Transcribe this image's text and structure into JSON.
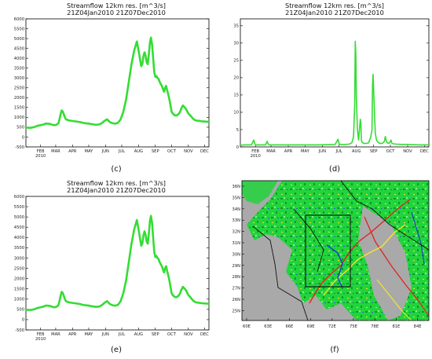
{
  "chart_data": [
    {
      "type": "line",
      "panel": "c",
      "title": "Streamflow 12km res. [m^3/s]",
      "subtitle": "21Z04Jan2010 21Z07Dec2010",
      "caption": "(c)",
      "ylim": [
        -500,
        6000
      ],
      "yticks": [
        "6000",
        "5500",
        "5000",
        "4500",
        "4000",
        "3500",
        "3000",
        "2500",
        "2000",
        "1500",
        "1000",
        "500",
        "0",
        "-500"
      ],
      "xticks": [
        "FEB\n2010",
        "MAR",
        "APR",
        "MAY",
        "JUN",
        "JUL",
        "AUG",
        "SEP",
        "OCT",
        "NOV",
        "DEC"
      ],
      "color": "#33dd33",
      "series": [
        {
          "x": [
            0,
            8,
            15,
            20,
            25,
            30,
            33,
            36,
            40,
            44,
            48,
            52,
            56,
            60,
            62,
            64,
            66,
            68,
            70,
            72,
            74,
            80,
            85,
            90,
            95,
            100,
            105,
            110,
            115,
            120,
            125,
            130,
            135,
            140,
            145,
            150,
            155,
            160,
            165,
            170,
            175,
            180,
            185,
            190,
            195,
            200,
            205,
            208,
            211,
            213,
            215,
            217,
            219,
            221,
            223,
            225,
            227,
            229,
            231,
            233,
            235,
            237,
            239,
            241,
            243,
            245,
            247,
            249,
            251,
            253,
            255,
            257,
            259,
            261,
            263,
            265,
            267,
            269,
            271,
            273,
            275,
            277,
            279,
            281,
            283,
            285,
            287,
            290,
            295,
            300,
            305,
            308,
            311,
            314,
            317,
            320,
            325,
            330,
            335,
            338
          ],
          "y": [
            480,
            470,
            500,
            560,
            590,
            620,
            640,
            680,
            680,
            670,
            630,
            600,
            620,
            700,
            900,
            1150,
            1350,
            1300,
            1150,
            1000,
            900,
            840,
            820,
            800,
            780,
            760,
            720,
            700,
            690,
            660,
            640,
            620,
            640,
            700,
            820,
            900,
            760,
            700,
            680,
            720,
            900,
            1300,
            1900,
            2800,
            3700,
            4400,
            4850,
            4400,
            3900,
            3600,
            3700,
            4100,
            4300,
            4150,
            3800,
            3700,
            4200,
            4800,
            5050,
            4700,
            4000,
            3300,
            3050,
            3100,
            3000,
            2950,
            2800,
            2700,
            2600,
            2450,
            2300,
            2500,
            2600,
            2350,
            2150,
            1900,
            1600,
            1300,
            1200,
            1150,
            1100,
            1100,
            1100,
            1150,
            1200,
            1300,
            1450,
            1600,
            1450,
            1200,
            1050,
            950,
            880,
            840,
            830,
            820,
            800,
            790,
            780,
            780
          ]
        }
      ]
    },
    {
      "type": "line",
      "panel": "d",
      "title": "Streamflow 12km res. [m^3/s]",
      "subtitle": "21Z04Jan2010 21Z07Dec2010",
      "caption": "(d)",
      "ylim": [
        0,
        37
      ],
      "yticks": [
        "35",
        "30",
        "25",
        "20",
        "15",
        "10",
        "5",
        "0"
      ],
      "xticks": [
        "FEB\n2010",
        "MAR",
        "APR",
        "MAY",
        "JUN",
        "JUL",
        "AUG",
        "SEP",
        "OCT",
        "NOV",
        "DEC"
      ],
      "color": "#33dd33",
      "series": [
        {
          "x": [
            0,
            10,
            20,
            24,
            26,
            28,
            35,
            45,
            48,
            50,
            52,
            60,
            80,
            100,
            120,
            140,
            170,
            175,
            177,
            179,
            185,
            195,
            200,
            203,
            205,
            206,
            207,
            208,
            210,
            212,
            214,
            215,
            216,
            217,
            218,
            219,
            222,
            226,
            230,
            234,
            236,
            237,
            238,
            240,
            242,
            244,
            246,
            248,
            250,
            254,
            258,
            260,
            262,
            265,
            268,
            270,
            272,
            274,
            280,
            290,
            300,
            320,
            338
          ],
          "y": [
            0.5,
            0.6,
            0.6,
            2.0,
            0.8,
            0.6,
            0.6,
            0.6,
            1.6,
            0.8,
            0.6,
            0.6,
            0.6,
            0.6,
            0.6,
            0.6,
            0.7,
            2.2,
            0.9,
            0.7,
            0.7,
            0.8,
            1.2,
            3.0,
            12,
            30.5,
            27,
            14,
            5,
            2,
            6,
            8,
            7,
            2,
            1.5,
            1.2,
            1,
            1,
            1.2,
            3,
            5,
            18,
            21,
            12,
            4,
            2,
            1.5,
            1.2,
            1,
            1,
            1.5,
            3,
            1.5,
            1,
            1.2,
            2,
            1,
            0.9,
            0.8,
            0.7,
            0.7,
            0.6,
            0.6
          ]
        }
      ]
    },
    {
      "type": "line",
      "panel": "e",
      "title": "Streamflow 12km res. [m^3/s]",
      "subtitle": "21Z04Jan2010 21Z07Dec2010",
      "caption": "(e)",
      "ylim": [
        -500,
        6000
      ],
      "yticks": [
        "6000",
        "5500",
        "5000",
        "4500",
        "4000",
        "3500",
        "3000",
        "2500",
        "2000",
        "1500",
        "1000",
        "500",
        "0",
        "-500"
      ],
      "xticks": [
        "FEB\n2010",
        "MAR",
        "APR",
        "MAY",
        "JUN",
        "JUL",
        "AUG",
        "SEP",
        "OCT",
        "NOV",
        "DEC"
      ],
      "color": "#33dd33",
      "series": [
        {
          "x": [
            0,
            8,
            15,
            20,
            25,
            30,
            33,
            36,
            40,
            44,
            48,
            52,
            56,
            60,
            62,
            64,
            66,
            68,
            70,
            72,
            74,
            80,
            85,
            90,
            95,
            100,
            105,
            110,
            115,
            120,
            125,
            130,
            135,
            140,
            145,
            150,
            155,
            160,
            165,
            170,
            175,
            180,
            185,
            190,
            195,
            200,
            205,
            208,
            211,
            213,
            215,
            217,
            219,
            221,
            223,
            225,
            227,
            229,
            231,
            233,
            235,
            237,
            239,
            241,
            243,
            245,
            247,
            249,
            251,
            253,
            255,
            257,
            259,
            261,
            263,
            265,
            267,
            269,
            271,
            273,
            275,
            277,
            279,
            281,
            283,
            285,
            287,
            290,
            295,
            300,
            305,
            308,
            311,
            314,
            317,
            320,
            325,
            330,
            335,
            338
          ],
          "y": [
            480,
            470,
            500,
            560,
            590,
            620,
            640,
            680,
            680,
            670,
            630,
            600,
            620,
            700,
            900,
            1150,
            1350,
            1300,
            1150,
            1000,
            900,
            840,
            820,
            800,
            780,
            760,
            720,
            700,
            690,
            660,
            640,
            620,
            640,
            700,
            820,
            900,
            760,
            700,
            680,
            720,
            900,
            1300,
            1900,
            2800,
            3700,
            4400,
            4850,
            4400,
            3900,
            3600,
            3700,
            4100,
            4300,
            4150,
            3800,
            3700,
            4200,
            4800,
            5050,
            4700,
            4000,
            3300,
            3050,
            3100,
            3000,
            2950,
            2800,
            2700,
            2600,
            2450,
            2300,
            2500,
            2600,
            2350,
            2150,
            1900,
            1600,
            1300,
            1200,
            1150,
            1100,
            1100,
            1100,
            1150,
            1200,
            1300,
            1450,
            1600,
            1450,
            1200,
            1050,
            950,
            880,
            840,
            830,
            820,
            800,
            790,
            780,
            780
          ]
        }
      ]
    }
  ],
  "map": {
    "caption": "(f)",
    "lat_labels": [
      "36N",
      "35N",
      "34N",
      "33N",
      "32N",
      "31N",
      "30N",
      "29N",
      "28N",
      "27N",
      "26N",
      "25N"
    ],
    "lon_labels": [
      "60E",
      "63E",
      "66E",
      "69E",
      "72E",
      "75E",
      "78E",
      "81E",
      "84E"
    ],
    "colors": {
      "land_gray": "#a9a9a9",
      "veg_green": "#1fd43a",
      "river_blue": "#1d3fcf",
      "river_red": "#e0231f",
      "river_yellow": "#f2e62a"
    }
  }
}
